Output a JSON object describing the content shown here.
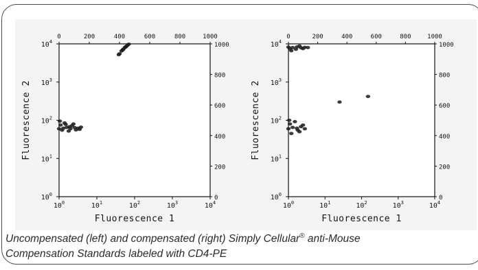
{
  "caption": {
    "line1_part1": "Uncompensated (left) and compensated (right) Simply Cellular",
    "registered_mark": "®",
    "line1_part2": " anti-Mouse",
    "line2": "Compensation Standards labeled with CD4-PE"
  },
  "chart_data": [
    {
      "type": "scatter",
      "title": "",
      "xlabel": "Fluorescence 1",
      "ylabel": "Fluorescence 2",
      "x_scale": "log",
      "y_scale": "log",
      "xlim": [
        1,
        10000
      ],
      "ylim": [
        1,
        10000
      ],
      "x_ticks": [
        {
          "v": 1,
          "m": "0"
        },
        {
          "v": 10,
          "m": "1"
        },
        {
          "v": 100,
          "m": "2"
        },
        {
          "v": 1000,
          "m": "3"
        },
        {
          "v": 10000,
          "m": "4"
        }
      ],
      "y_ticks": [
        {
          "v": 1,
          "m": "0"
        },
        {
          "v": 10,
          "m": "1"
        },
        {
          "v": 100,
          "m": "2"
        },
        {
          "v": 1000,
          "m": "3"
        },
        {
          "v": 10000,
          "m": "4"
        }
      ],
      "top_axis": {
        "range": [
          0,
          1000
        ],
        "ticks": [
          "0",
          "200",
          "400",
          "600",
          "800",
          "1000"
        ]
      },
      "right_axis": {
        "range": [
          0,
          1000
        ],
        "ticks": [
          "0",
          "200",
          "400",
          "600",
          "800",
          "1000"
        ]
      },
      "grid": false,
      "series": [
        {
          "values": [
            {
              "x": 1,
              "y": 60
            },
            {
              "x": 1.3,
              "y": 62
            },
            {
              "x": 1.6,
              "y": 65
            },
            {
              "x": 2.0,
              "y": 60
            },
            {
              "x": 2.6,
              "y": 64
            },
            {
              "x": 3.2,
              "y": 62
            },
            {
              "x": 3.8,
              "y": 66
            },
            {
              "x": 1.1,
              "y": 75
            },
            {
              "x": 1.5,
              "y": 78
            },
            {
              "x": 2.2,
              "y": 72
            },
            {
              "x": 1.2,
              "y": 55
            },
            {
              "x": 1.8,
              "y": 52
            },
            {
              "x": 2.8,
              "y": 56
            },
            {
              "x": 1.05,
              "y": 95
            },
            {
              "x": 1.4,
              "y": 85
            },
            {
              "x": 2.4,
              "y": 80
            },
            {
              "x": 3.5,
              "y": 58
            },
            {
              "x": 1.9,
              "y": 68
            },
            {
              "x": 40,
              "y": 5500
            },
            {
              "x": 45,
              "y": 6500
            },
            {
              "x": 50,
              "y": 7200
            },
            {
              "x": 55,
              "y": 8000
            },
            {
              "x": 60,
              "y": 8600
            },
            {
              "x": 65,
              "y": 9200
            },
            {
              "x": 70,
              "y": 9800
            },
            {
              "x": 48,
              "y": 6900
            },
            {
              "x": 58,
              "y": 8300
            },
            {
              "x": 38,
              "y": 5200
            }
          ]
        }
      ]
    },
    {
      "type": "scatter",
      "title": "",
      "xlabel": "Fluorescence 1",
      "ylabel": "Fluorescence 2",
      "x_scale": "log",
      "y_scale": "log",
      "xlim": [
        1,
        10000
      ],
      "ylim": [
        1,
        10000
      ],
      "x_ticks": [
        {
          "v": 1,
          "m": "0"
        },
        {
          "v": 10,
          "m": "1"
        },
        {
          "v": 100,
          "m": "2"
        },
        {
          "v": 1000,
          "m": "3"
        },
        {
          "v": 10000,
          "m": "4"
        }
      ],
      "y_ticks": [
        {
          "v": 1,
          "m": "0"
        },
        {
          "v": 10,
          "m": "1"
        },
        {
          "v": 100,
          "m": "2"
        },
        {
          "v": 1000,
          "m": "3"
        },
        {
          "v": 10000,
          "m": "4"
        }
      ],
      "top_axis": {
        "range": [
          0,
          1000
        ],
        "ticks": [
          "0",
          "200",
          "400",
          "600",
          "800",
          "1000"
        ]
      },
      "right_axis": {
        "range": [
          0,
          1000
        ],
        "ticks": [
          "0",
          "200",
          "400",
          "600",
          "800",
          "1000"
        ]
      },
      "grid": false,
      "series": [
        {
          "values": [
            {
              "x": 1,
              "y": 8200
            },
            {
              "x": 1.3,
              "y": 8000
            },
            {
              "x": 1.7,
              "y": 8300
            },
            {
              "x": 2.2,
              "y": 7900
            },
            {
              "x": 2.8,
              "y": 8100
            },
            {
              "x": 3.4,
              "y": 8000
            },
            {
              "x": 1.1,
              "y": 7400
            },
            {
              "x": 1.6,
              "y": 7200
            },
            {
              "x": 2.0,
              "y": 8800
            },
            {
              "x": 1.2,
              "y": 6600
            },
            {
              "x": 2.5,
              "y": 7500
            },
            {
              "x": 1,
              "y": 60
            },
            {
              "x": 1.3,
              "y": 65
            },
            {
              "x": 1.7,
              "y": 62
            },
            {
              "x": 2.2,
              "y": 68
            },
            {
              "x": 2.8,
              "y": 60
            },
            {
              "x": 1.1,
              "y": 80
            },
            {
              "x": 1.5,
              "y": 92
            },
            {
              "x": 2.0,
              "y": 50
            },
            {
              "x": 1.2,
              "y": 45
            },
            {
              "x": 2.5,
              "y": 75
            },
            {
              "x": 1.05,
              "y": 100
            },
            {
              "x": 1.8,
              "y": 55
            },
            {
              "x": 25,
              "y": 300
            },
            {
              "x": 150,
              "y": 420
            }
          ]
        }
      ]
    }
  ]
}
